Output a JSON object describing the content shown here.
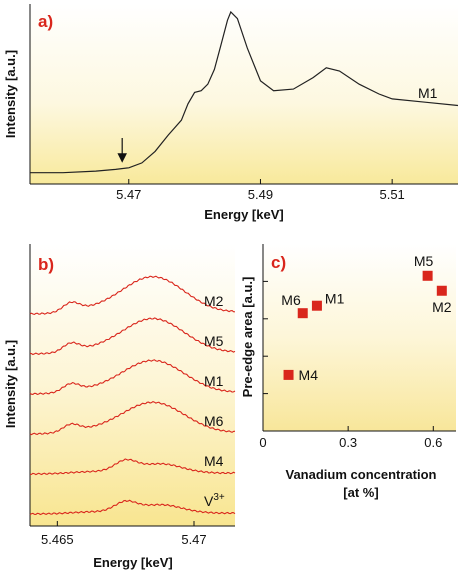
{
  "chart_data": [
    {
      "panel": "a)",
      "type": "line",
      "xlabel": "Energy [keV]",
      "ylabel": "Intensity [a.u.]",
      "xlim": [
        5.455,
        5.52
      ],
      "xticks": [
        "5.47",
        "5.49",
        "5.51"
      ],
      "series": [
        {
          "name": "M1",
          "x": [
            5.455,
            5.46,
            5.465,
            5.468,
            5.47,
            5.472,
            5.474,
            5.476,
            5.478,
            5.479,
            5.48,
            5.481,
            5.482,
            5.483,
            5.484,
            5.485,
            5.4855,
            5.4865,
            5.488,
            5.49,
            5.492,
            5.495,
            5.498,
            5.5,
            5.502,
            5.505,
            5.508,
            5.51,
            5.515,
            5.52
          ],
          "y": [
            0.02,
            0.02,
            0.03,
            0.04,
            0.05,
            0.08,
            0.15,
            0.25,
            0.34,
            0.44,
            0.51,
            0.52,
            0.56,
            0.65,
            0.8,
            0.95,
            1.0,
            0.96,
            0.78,
            0.58,
            0.52,
            0.53,
            0.6,
            0.66,
            0.64,
            0.56,
            0.5,
            0.47,
            0.45,
            0.43
          ]
        }
      ],
      "annotation": {
        "type": "arrow",
        "x": 5.469
      }
    },
    {
      "panel": "b)",
      "type": "line",
      "xlabel": "Energy [keV]",
      "ylabel": "Intensity [a.u.]",
      "xlim": [
        5.464,
        5.4715
      ],
      "xticks": [
        "5.465",
        "5.47"
      ],
      "series": [
        {
          "name": "M2",
          "offset": 5,
          "amp": 1.0
        },
        {
          "name": "M5",
          "offset": 4,
          "amp": 0.95
        },
        {
          "name": "M1",
          "offset": 3,
          "amp": 0.9
        },
        {
          "name": "M6",
          "offset": 2,
          "amp": 0.85
        },
        {
          "name": "M4",
          "offset": 1,
          "amp": 0.55
        },
        {
          "name": "V3+",
          "display_name": "V",
          "sup": "3+",
          "offset": 0,
          "amp": 0.5
        }
      ]
    },
    {
      "panel": "c)",
      "type": "scatter",
      "xlabel_line1": "Vanadium concentration",
      "xlabel_line2": "[at %]",
      "ylabel": "Pre-edge area [a.u.]",
      "xlim": [
        0,
        0.68
      ],
      "ylim": [
        0,
        1
      ],
      "xticks": [
        "0",
        "0.3",
        "0.6"
      ],
      "points": [
        {
          "label": "M4",
          "x": 0.09,
          "y": 0.3
        },
        {
          "label": "M6",
          "x": 0.14,
          "y": 0.63
        },
        {
          "label": "M1",
          "x": 0.19,
          "y": 0.67
        },
        {
          "label": "M5",
          "x": 0.58,
          "y": 0.83
        },
        {
          "label": "M2",
          "x": 0.63,
          "y": 0.75
        }
      ],
      "marker_color": "#d9261c"
    }
  ],
  "colors": {
    "trace_a": "#222222",
    "trace_b": "#d9261c",
    "marker": "#d9261c",
    "label": "#d9261c"
  }
}
